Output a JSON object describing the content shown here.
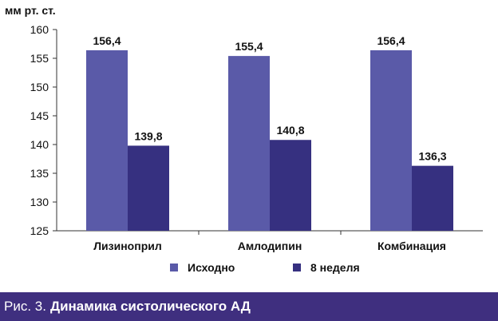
{
  "caption": {
    "prefix": "Рис. 3.",
    "title": "Динамика систолического АД"
  },
  "chart_data": {
    "type": "bar",
    "ylabel": "мм рт. ст.",
    "ylim": [
      125,
      160
    ],
    "yticks": [
      125,
      130,
      135,
      140,
      145,
      150,
      155,
      160
    ],
    "categories": [
      "Лизиноприл",
      "Амлодипин",
      "Комбинация"
    ],
    "series": [
      {
        "name": "Исходно",
        "values": [
          156.4,
          155.4,
          156.4
        ],
        "color": "#5a5aa8"
      },
      {
        "name": "8 неделя",
        "values": [
          139.8,
          140.8,
          136.3
        ],
        "color": "#363080"
      }
    ],
    "value_labels": [
      [
        "156,4",
        "155,4",
        "156,4"
      ],
      [
        "139,8",
        "140,8",
        "136,3"
      ]
    ],
    "grid": false,
    "legend_position": "bottom-center"
  }
}
